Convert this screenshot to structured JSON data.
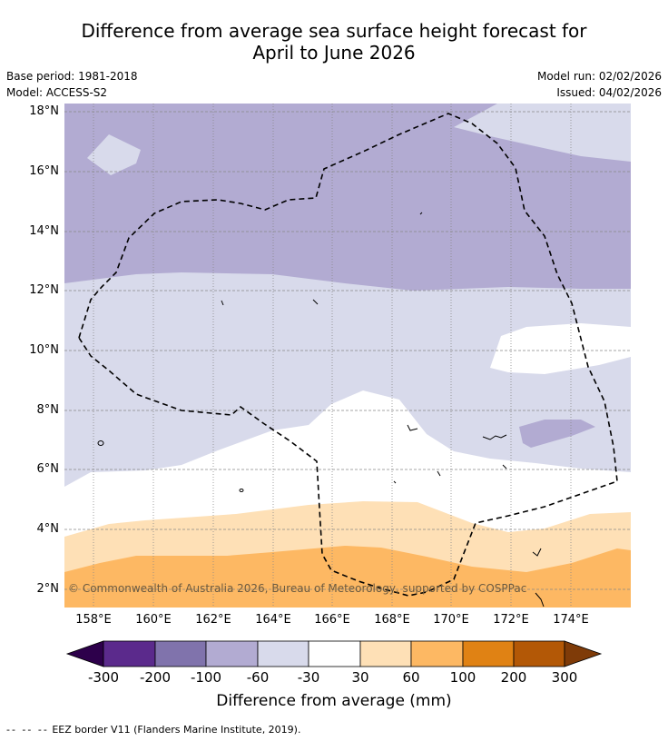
{
  "title": {
    "line1": "Difference from average sea surface height forecast for",
    "line2": "April to June 2026"
  },
  "meta": {
    "base_period": "Base period: 1981-2018",
    "model": "Model: ACCESS-S2",
    "model_run": "Model run: 02/02/2026",
    "issued": "Issued: 04/02/2026"
  },
  "map": {
    "lat_labels": [
      "18°N",
      "16°N",
      "14°N",
      "12°N",
      "10°N",
      "8°N",
      "6°N",
      "4°N",
      "2°N"
    ],
    "lon_labels": [
      "158°E",
      "160°E",
      "162°E",
      "164°E",
      "166°E",
      "168°E",
      "170°E",
      "172°E",
      "174°E"
    ],
    "copyright": "© Commonwealth of Australia 2026, Bureau of Meteorology, supported by COSPPac"
  },
  "colorbar": {
    "colors": [
      "#2d004b",
      "#5b2a8c",
      "#8073ac",
      "#b2abd2",
      "#d8daeb",
      "#ffffff",
      "#fee0b6",
      "#fdb863",
      "#e08214",
      "#b35806",
      "#7f3b08"
    ],
    "tick_labels": [
      "-300",
      "-200",
      "-100",
      "-60",
      "-30",
      "30",
      "60",
      "100",
      "200",
      "300"
    ],
    "title": "Difference from average (mm)"
  },
  "footer": {
    "legend_symbol": "-- -- --",
    "eez_note": "EEZ border V11 (Flanders Marine Institute, 2019)."
  }
}
